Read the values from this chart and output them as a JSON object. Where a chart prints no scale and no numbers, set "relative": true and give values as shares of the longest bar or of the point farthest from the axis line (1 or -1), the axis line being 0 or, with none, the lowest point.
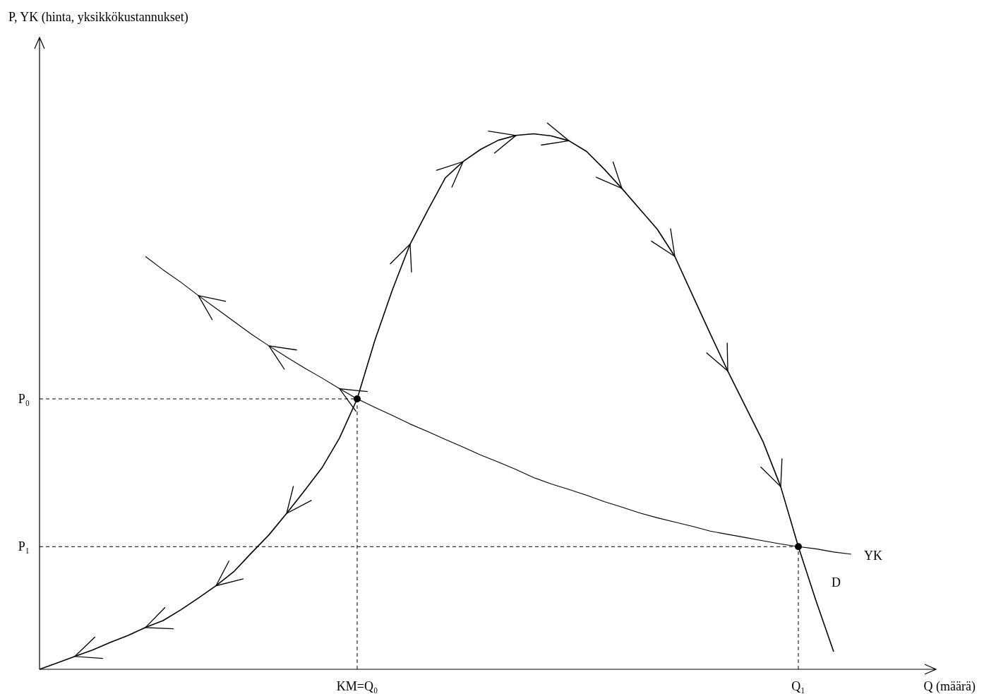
{
  "chart_data": {
    "type": "line",
    "relative": true,
    "xlabel": "Q (määrä)",
    "annotations": [
      "P, YK (hinta, yksikkökustannukset)"
    ],
    "categories": [
      null,
      null,
      null,
      null,
      null,
      null,
      null,
      null,
      null,
      null,
      null,
      null,
      null,
      null,
      null,
      null,
      null,
      null,
      "KM=Q₀",
      null,
      null,
      null,
      null,
      null,
      null,
      null,
      null,
      null,
      null,
      null,
      null,
      null,
      null,
      null,
      null,
      null,
      null,
      null,
      null,
      null,
      null,
      null,
      null,
      "Q₁",
      null,
      null,
      null,
      null,
      null,
      null,
      null
    ],
    "ref_lines": [
      {
        "axis": "y",
        "value": 0.505,
        "label": "P₀",
        "line_style": "dashed"
      },
      {
        "axis": "y",
        "value": 0.229,
        "label": "P₁",
        "line_style": "dashed"
      }
    ],
    "series": [
      {
        "name": "D",
        "color": "#000000",
        "values": [
          0,
          0.012,
          0.024,
          0.036,
          0.05,
          0.063,
          0.078,
          0.091,
          0.111,
          0.133,
          0.156,
          0.182,
          0.217,
          0.251,
          0.291,
          0.333,
          0.376,
          0.432,
          0.505,
          0.614,
          0.709,
          0.794,
          0.857,
          0.918,
          0.948,
          0.971,
          0.988,
          0.997,
          1,
          0.996,
          0.987,
          0.967,
          0.934,
          0.898,
          0.86,
          0.822,
          0.771,
          0.699,
          0.627,
          0.557,
          0.491,
          0.425,
          0.341,
          0.229,
          0.128,
          0.033,
          null,
          null,
          null,
          null,
          null
        ]
      },
      {
        "name": "YK",
        "color": "#000000",
        "values": [
          null,
          null,
          null,
          null,
          null,
          null,
          0.771,
          0.746,
          0.723,
          0.698,
          0.674,
          0.65,
          0.626,
          0.604,
          0.583,
          0.563,
          0.544,
          0.524,
          0.505,
          0.489,
          0.474,
          0.458,
          0.444,
          0.429,
          0.415,
          0.4,
          0.387,
          0.373,
          0.358,
          0.346,
          0.336,
          0.325,
          0.313,
          0.303,
          0.292,
          0.283,
          0.275,
          0.267,
          0.258,
          0.252,
          0.246,
          0.24,
          0.234,
          0.229,
          0.225,
          0.219,
          0.215,
          null,
          null,
          null,
          null
        ]
      },
      {
        "type": "scatter",
        "color": "#000000",
        "values": [
          null,
          null,
          null,
          null,
          null,
          null,
          null,
          null,
          null,
          null,
          null,
          null,
          null,
          null,
          null,
          null,
          null,
          null,
          0.505,
          null,
          null,
          null,
          null,
          null,
          null,
          null,
          null,
          null,
          null,
          null,
          null,
          null,
          null,
          null,
          null,
          null,
          null,
          null,
          null,
          null,
          null,
          null,
          null,
          0.229,
          null,
          null,
          null,
          null,
          null,
          null,
          null
        ]
      }
    ]
  }
}
